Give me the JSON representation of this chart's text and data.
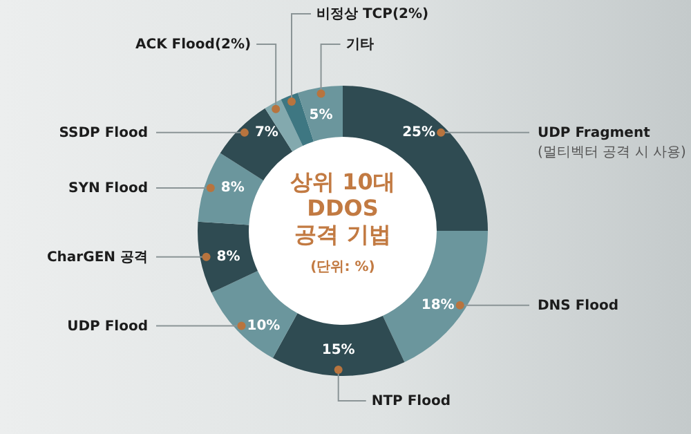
{
  "chart_data": {
    "type": "donut",
    "title": "상위 10대\nDDOS\n공격 기법",
    "subtitle": "(단위: %)",
    "categories": [
      "UDP Fragment\n(멀티벡터 공격 시 사용)",
      "DNS Flood",
      "NTP Flood",
      "UDP Flood",
      "CharGEN 공격",
      "SYN Flood",
      "SSDP Flood",
      "ACK Flood(2%)",
      "비정상 TCP(2%)",
      "기타"
    ],
    "values": [
      25,
      18,
      15,
      10,
      8,
      8,
      7,
      2,
      2,
      5
    ],
    "value_labels": [
      "25%",
      "18%",
      "15%",
      "10%",
      "8%",
      "8%",
      "7%",
      null,
      null,
      "5%"
    ],
    "colors": [
      "#2f4b52",
      "#6b969d",
      "#2f4b52",
      "#6b969d",
      "#2f4b52",
      "#6b969d",
      "#2f4b52",
      "#83a9ae",
      "#3e7782",
      "#6b969d"
    ],
    "legend": false
  }
}
